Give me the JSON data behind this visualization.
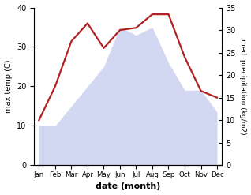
{
  "months": [
    "Jan",
    "Feb",
    "Mar",
    "Apr",
    "May",
    "Jun",
    "Jul",
    "Aug",
    "Sep",
    "Oct",
    "Nov",
    "Dec"
  ],
  "max_temp": [
    10.0,
    10.0,
    15.0,
    20.0,
    25.0,
    35.0,
    33.0,
    35.0,
    26.0,
    19.0,
    19.0,
    13.5
  ],
  "precipitation": [
    10.0,
    17.5,
    27.5,
    31.5,
    26.0,
    30.0,
    30.5,
    33.5,
    33.5,
    24.0,
    16.5,
    15.0
  ],
  "temp_fill_color": "#adb8e6",
  "precip_color": "#b22222",
  "xlabel": "date (month)",
  "ylabel_left": "max temp (C)",
  "ylabel_right": "med. precipitation (kg/m2)",
  "ylim_left": [
    0,
    40
  ],
  "ylim_right": [
    0,
    35
  ],
  "yticks_left": [
    0,
    10,
    20,
    30,
    40
  ],
  "yticks_right": [
    0,
    5,
    10,
    15,
    20,
    25,
    30,
    35
  ],
  "bg_color": "#ffffff",
  "area_alpha": 0.55,
  "figsize": [
    3.18,
    2.47
  ],
  "dpi": 100
}
